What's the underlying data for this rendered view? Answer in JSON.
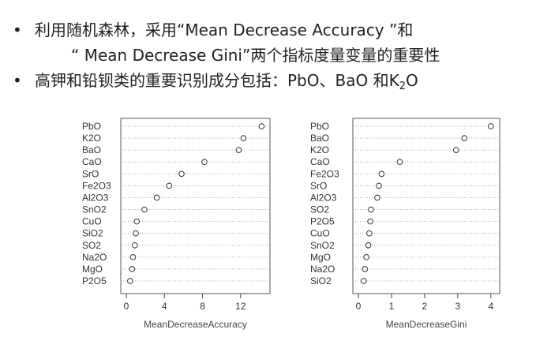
{
  "slide": {
    "bullets": [
      {
        "line1": "利用随机森林，采用“Mean Decrease Accuracy ”和",
        "line2": "“ Mean Decrease Gini”两个指标度量变量的重要性"
      },
      {
        "text_before": "高钾和铅钡类的重要识别成分包括：PbO、BaO 和K",
        "k2o_sub": "2",
        "k2o_tail": "O"
      }
    ],
    "bullet_symbol": "•"
  },
  "chart_data": [
    {
      "type": "scatter",
      "xlabel": "MeanDecreaseAccuracy",
      "xticks": [
        0,
        4,
        8,
        12
      ],
      "xlim": [
        0,
        14.5
      ],
      "categories": [
        "PbO",
        "K2O",
        "BaO",
        "CaO",
        "SrO",
        "Fe2O3",
        "Al2O3",
        "SnO2",
        "CuO",
        "SiO2",
        "SO2",
        "Na2O",
        "MgO",
        "P2O5"
      ],
      "values": [
        14.2,
        12.3,
        11.8,
        8.2,
        5.8,
        4.5,
        3.2,
        1.9,
        1.1,
        1.0,
        0.9,
        0.7,
        0.6,
        0.4
      ]
    },
    {
      "type": "scatter",
      "xlabel": "MeanDecreaseGini",
      "xticks": [
        0,
        1,
        2,
        3,
        4
      ],
      "xlim": [
        0,
        4.1
      ],
      "categories": [
        "PbO",
        "BaO",
        "K2O",
        "CaO",
        "Fe2O3",
        "SrO",
        "Al2O3",
        "SO2",
        "P2O5",
        "CuO",
        "SnO2",
        "MgO",
        "Na2O",
        "SiO2"
      ],
      "values": [
        4.0,
        3.2,
        2.95,
        1.25,
        0.7,
        0.62,
        0.57,
        0.38,
        0.36,
        0.33,
        0.3,
        0.24,
        0.2,
        0.16
      ]
    }
  ]
}
